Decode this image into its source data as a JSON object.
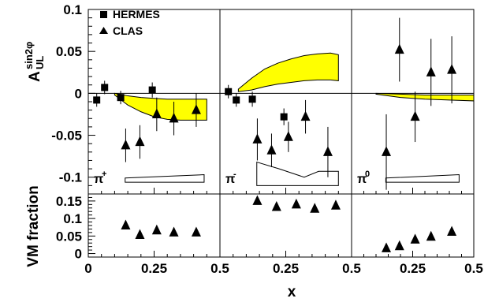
{
  "chart_data": {
    "type": "scatter",
    "xlabel": "x",
    "top_ylabel": "A",
    "top_ylabel_sup": "sin2φ",
    "top_ylabel_sub": "UL",
    "bottom_ylabel": "VM fraction",
    "xlim": [
      0,
      0.5
    ],
    "top_ylim": [
      -0.12,
      0.1
    ],
    "bottom_ylim": [
      -0.01,
      0.17
    ],
    "x_ticks": [
      "0",
      "0.25",
      "0.5"
    ],
    "x_tick_values": [
      0,
      0.25,
      0.5
    ],
    "top_y_ticks": [
      "0.1",
      "0.05",
      "0",
      "-0.05",
      "-0.1"
    ],
    "top_y_tick_values": [
      0.1,
      0.05,
      0,
      -0.05,
      -0.1
    ],
    "bottom_y_ticks": [
      "0.15",
      "0.1",
      "0.05",
      "0"
    ],
    "bottom_y_tick_values": [
      0.15,
      0.1,
      0.05,
      0
    ],
    "legend": [
      {
        "name": "HERMES",
        "marker": "square"
      },
      {
        "name": "CLAS",
        "marker": "triangle"
      }
    ],
    "colors": {
      "band": "#ffff00",
      "marker": "#000000"
    },
    "panels": [
      {
        "label": "π",
        "label_sup": "+",
        "hermes": {
          "x": [
            0.032,
            0.062,
            0.123,
            0.243
          ],
          "y": [
            -0.008,
            0.007,
            -0.005,
            0.004
          ],
          "err": [
            0.008,
            0.008,
            0.008,
            0.009
          ]
        },
        "clas": {
          "x": [
            0.142,
            0.196,
            0.26,
            0.325,
            0.41
          ],
          "y": [
            -0.062,
            -0.058,
            -0.025,
            -0.03,
            -0.02
          ],
          "err": [
            0.02,
            0.02,
            0.02,
            0.02,
            0.02
          ]
        },
        "band_x": [
          0.1,
          0.15,
          0.2,
          0.25,
          0.3,
          0.35,
          0.4,
          0.45
        ],
        "band_upper": [
          0,
          -0.003,
          -0.005,
          -0.006,
          -0.007,
          -0.007,
          -0.007,
          -0.007
        ],
        "band_lower": [
          -0.002,
          -0.014,
          -0.022,
          -0.028,
          -0.031,
          -0.032,
          -0.032,
          -0.032
        ],
        "syst_x": [
          0.14,
          0.44
        ],
        "syst_upper": [
          -0.101,
          -0.097
        ],
        "syst_lower": [
          -0.106,
          -0.106
        ],
        "vm_fraction": {
          "x": [
            0.142,
            0.196,
            0.26,
            0.325,
            0.41
          ],
          "y": [
            0.08,
            0.053,
            0.066,
            0.06,
            0.06
          ]
        }
      },
      {
        "label": "π",
        "label_sup": "-",
        "hermes": {
          "x": [
            0.032,
            0.062,
            0.123,
            0.243
          ],
          "y": [
            0.002,
            -0.008,
            -0.007,
            -0.028
          ],
          "err": [
            0.008,
            0.008,
            0.009,
            0.01
          ]
        },
        "clas": {
          "x": [
            0.142,
            0.196,
            0.26,
            0.325,
            0.41
          ],
          "y": [
            -0.055,
            -0.068,
            -0.052,
            -0.028,
            -0.07
          ],
          "err": [
            0.025,
            0.02,
            0.018,
            0.02,
            0.03
          ]
        },
        "band_x": [
          0.07,
          0.12,
          0.17,
          0.22,
          0.27,
          0.32,
          0.37,
          0.42,
          0.45
        ],
        "band_upper": [
          0.005,
          0.018,
          0.029,
          0.036,
          0.041,
          0.045,
          0.047,
          0.048,
          0.046
        ],
        "band_lower": [
          0.002,
          0.004,
          0.008,
          0.011,
          0.013,
          0.015,
          0.016,
          0.016,
          0.015
        ],
        "syst_x": [
          0.14,
          0.225,
          0.32,
          0.375,
          0.45
        ],
        "syst_upper": [
          -0.082,
          -0.09,
          -0.1,
          -0.093,
          -0.093
        ],
        "syst_lower": [
          -0.11,
          -0.11,
          -0.11,
          -0.11,
          -0.11
        ],
        "vm_fraction": {
          "x": [
            0.142,
            0.215,
            0.29,
            0.36,
            0.44
          ],
          "y": [
            0.15,
            0.133,
            0.14,
            0.128,
            0.137
          ]
        }
      },
      {
        "label": "π",
        "label_sup": "0",
        "hermes": {
          "x": [],
          "y": [],
          "err": []
        },
        "clas": {
          "x": [
            0.142,
            0.196,
            0.26,
            0.325,
            0.41
          ],
          "y": [
            -0.07,
            0.052,
            -0.028,
            0.025,
            0.028
          ],
          "err": [
            0.045,
            0.038,
            0.03,
            0.04,
            0.04
          ]
        },
        "band_x": [
          0.1,
          0.2,
          0.3,
          0.4,
          0.5
        ],
        "band_upper": [
          0,
          -0.001,
          -0.002,
          -0.002,
          -0.002
        ],
        "band_lower": [
          -0.001,
          -0.005,
          -0.007,
          -0.008,
          -0.009
        ],
        "syst_x": [
          0.14,
          0.44
        ],
        "syst_upper": [
          -0.101,
          -0.097
        ],
        "syst_lower": [
          -0.106,
          -0.106
        ],
        "vm_fraction": {
          "x": [
            0.142,
            0.196,
            0.26,
            0.325,
            0.41
          ],
          "y": [
            0.015,
            0.021,
            0.04,
            0.048,
            0.062
          ]
        }
      }
    ]
  }
}
